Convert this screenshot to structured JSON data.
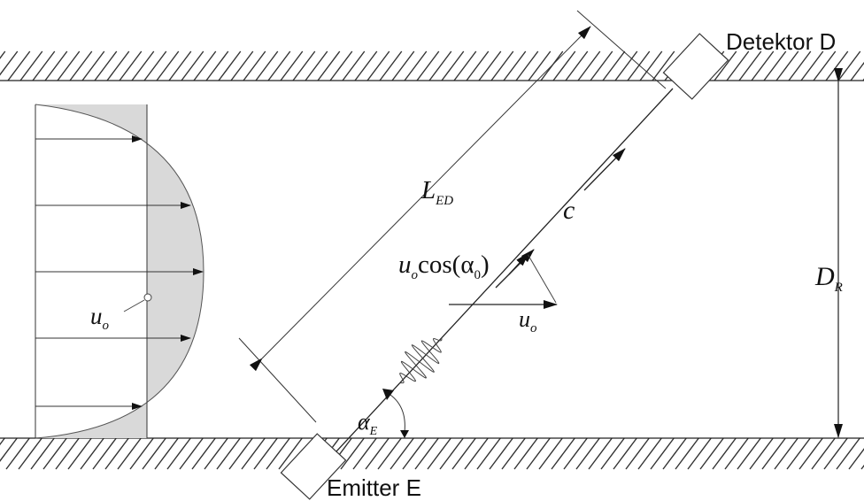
{
  "labels": {
    "detector": "Detektor D",
    "emitter": "Emitter E",
    "path_length": {
      "main": "L",
      "sub": "ED"
    },
    "sound_speed": "c",
    "flow_component": {
      "pre": "u",
      "pre_sub": "o",
      "mid": "cos(α",
      "mid_sub": "0",
      "post": ")"
    },
    "flow_velocity_vector": {
      "main": "u",
      "sub": "o"
    },
    "flow_velocity_profile": {
      "main": "u",
      "sub": "o"
    },
    "diameter": {
      "main": "D",
      "sub": "R"
    },
    "angle": {
      "main": "α",
      "sub": "E"
    }
  },
  "colors": {
    "profile_fill": "#d9d9d9",
    "line": "#222222"
  }
}
